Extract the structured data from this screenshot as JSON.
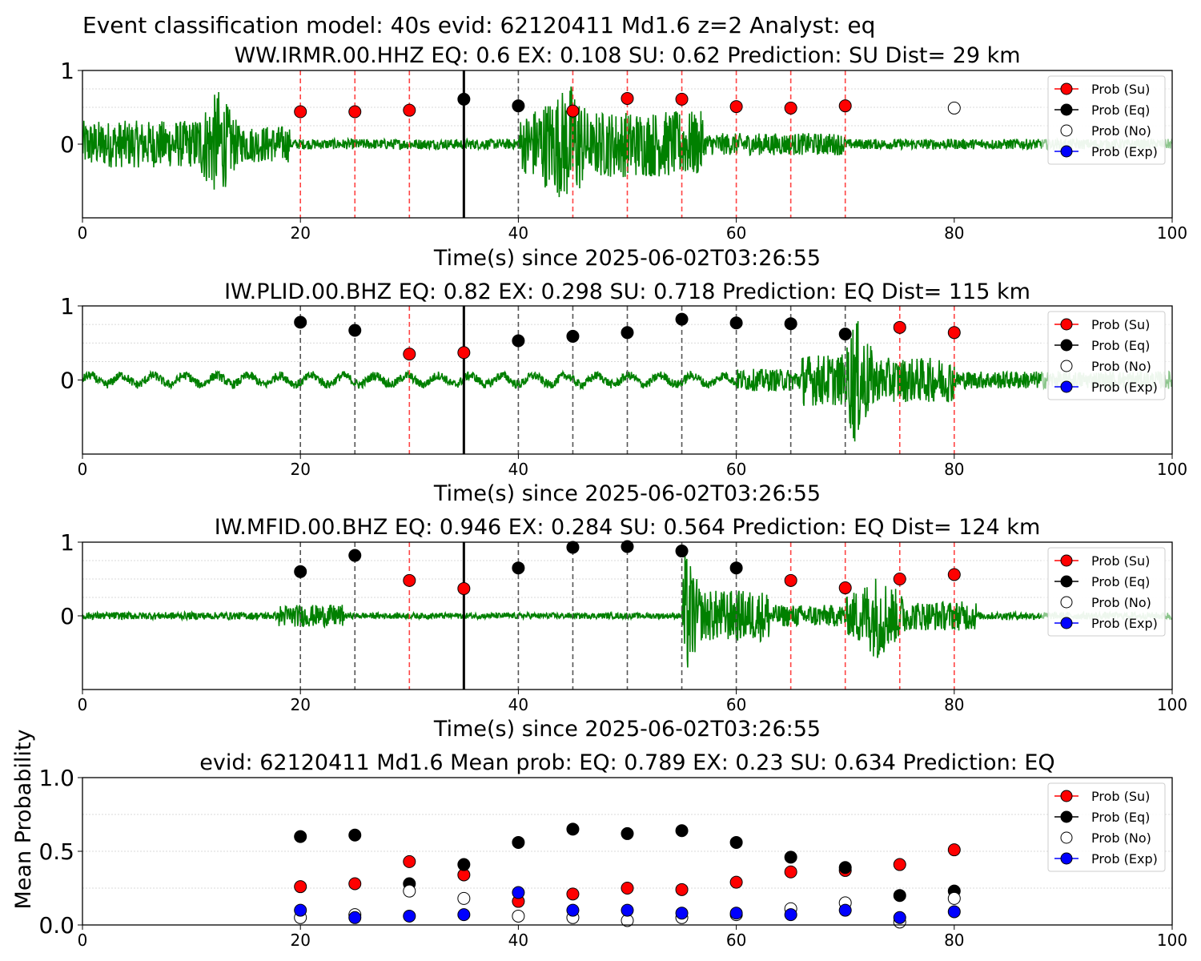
{
  "figure": {
    "suptitle": "Event classification model: 40s evid: 62120411 Md1.6 z=2 Analyst: eq",
    "colors": {
      "su": "#ff0000",
      "eq": "#000000",
      "no": "#ffffff",
      "exp": "#0000ff",
      "trace": "#008000",
      "trace_faint": "#c8e6c8"
    }
  },
  "chart_data": [
    {
      "type": "line",
      "title": "WW.IRMR.00.HHZ   EQ: 0.6  EX: 0.108  SU: 0.62   Prediction: SU    Dist= 29 km",
      "xlabel": "Time(s) since 2025-06-02T03:26:55",
      "xlim": [
        0,
        100
      ],
      "ylim": [
        -1,
        1
      ],
      "xticks": [
        "0",
        "20",
        "40",
        "60",
        "80",
        "100"
      ],
      "yticks": [
        "0",
        "1"
      ],
      "origin_marker_x": 35,
      "window_lines": [
        {
          "x": 20,
          "class": "su"
        },
        {
          "x": 25,
          "class": "su"
        },
        {
          "x": 30,
          "class": "su"
        },
        {
          "x": 40,
          "class": "eq"
        },
        {
          "x": 45,
          "class": "su"
        },
        {
          "x": 50,
          "class": "su"
        },
        {
          "x": 55,
          "class": "su"
        },
        {
          "x": 60,
          "class": "su"
        },
        {
          "x": 65,
          "class": "su"
        },
        {
          "x": 70,
          "class": "su"
        }
      ],
      "points": [
        {
          "x": 20,
          "y": 0.44,
          "class": "su"
        },
        {
          "x": 25,
          "y": 0.44,
          "class": "su"
        },
        {
          "x": 30,
          "y": 0.46,
          "class": "su"
        },
        {
          "x": 35,
          "y": 0.61,
          "class": "eq"
        },
        {
          "x": 40,
          "y": 0.52,
          "class": "eq"
        },
        {
          "x": 45,
          "y": 0.45,
          "class": "su"
        },
        {
          "x": 50,
          "y": 0.62,
          "class": "su"
        },
        {
          "x": 55,
          "y": 0.61,
          "class": "su"
        },
        {
          "x": 60,
          "y": 0.51,
          "class": "su"
        },
        {
          "x": 65,
          "y": 0.49,
          "class": "su"
        },
        {
          "x": 70,
          "y": 0.52,
          "class": "su"
        },
        {
          "x": 80,
          "y": 0.49,
          "class": "no"
        }
      ],
      "waveform": {
        "segments": [
          {
            "t0": 0,
            "t1": 10,
            "amp": 0.32
          },
          {
            "t0": 10,
            "t1": 14.5,
            "amp": 0.75,
            "peak": 12.5
          },
          {
            "t0": 14.5,
            "t1": 19,
            "amp": 0.25
          },
          {
            "t0": 19,
            "t1": 40,
            "amp": 0.07
          },
          {
            "t0": 40,
            "t1": 47,
            "amp": 0.85,
            "peak": 45
          },
          {
            "t0": 47,
            "t1": 57,
            "amp": 0.45
          },
          {
            "t0": 57,
            "t1": 70,
            "amp": 0.15
          },
          {
            "t0": 70,
            "t1": 100,
            "amp": 0.07
          }
        ]
      },
      "legend": [
        "Prob (Su)",
        "Prob (Eq)",
        "Prob (No)",
        "Prob (Exp)"
      ],
      "legend_loc": "upper right"
    },
    {
      "type": "line",
      "title": "IW.PLID.00.BHZ   EQ: 0.82  EX: 0.298  SU: 0.718   Prediction: EQ    Dist= 115 km",
      "xlabel": "Time(s) since 2025-06-02T03:26:55",
      "xlim": [
        0,
        100
      ],
      "ylim": [
        -1,
        1
      ],
      "xticks": [
        "0",
        "20",
        "40",
        "60",
        "80",
        "100"
      ],
      "yticks": [
        "0",
        "1"
      ],
      "origin_marker_x": 35,
      "window_lines": [
        {
          "x": 20,
          "class": "eq"
        },
        {
          "x": 25,
          "class": "eq"
        },
        {
          "x": 30,
          "class": "su"
        },
        {
          "x": 40,
          "class": "eq"
        },
        {
          "x": 45,
          "class": "eq"
        },
        {
          "x": 50,
          "class": "eq"
        },
        {
          "x": 55,
          "class": "eq"
        },
        {
          "x": 60,
          "class": "eq"
        },
        {
          "x": 65,
          "class": "eq"
        },
        {
          "x": 70,
          "class": "eq"
        },
        {
          "x": 75,
          "class": "su"
        },
        {
          "x": 80,
          "class": "su"
        }
      ],
      "points": [
        {
          "x": 20,
          "y": 0.78,
          "class": "eq"
        },
        {
          "x": 25,
          "y": 0.67,
          "class": "eq"
        },
        {
          "x": 30,
          "y": 0.35,
          "class": "su"
        },
        {
          "x": 35,
          "y": 0.37,
          "class": "su"
        },
        {
          "x": 40,
          "y": 0.53,
          "class": "eq"
        },
        {
          "x": 45,
          "y": 0.59,
          "class": "eq"
        },
        {
          "x": 50,
          "y": 0.64,
          "class": "eq"
        },
        {
          "x": 55,
          "y": 0.82,
          "class": "eq"
        },
        {
          "x": 60,
          "y": 0.77,
          "class": "eq"
        },
        {
          "x": 65,
          "y": 0.76,
          "class": "eq"
        },
        {
          "x": 70,
          "y": 0.62,
          "class": "eq"
        },
        {
          "x": 75,
          "y": 0.71,
          "class": "su"
        },
        {
          "x": 80,
          "y": 0.64,
          "class": "su"
        }
      ],
      "waveform": {
        "segments": [
          {
            "t0": 0,
            "t1": 60,
            "amp": 0.1,
            "swell": true
          },
          {
            "t0": 60,
            "t1": 66,
            "amp": 0.15
          },
          {
            "t0": 66,
            "t1": 70,
            "amp": 0.35
          },
          {
            "t0": 70,
            "t1": 73,
            "amp": 0.9,
            "peak": 70.8
          },
          {
            "t0": 73,
            "t1": 80,
            "amp": 0.3
          },
          {
            "t0": 80,
            "t1": 100,
            "amp": 0.12
          }
        ]
      },
      "legend": [
        "Prob (Su)",
        "Prob (Eq)",
        "Prob (No)",
        "Prob (Exp)"
      ],
      "legend_loc": "upper right"
    },
    {
      "type": "line",
      "title": "IW.MFID.00.BHZ   EQ: 0.946  EX: 0.284  SU: 0.564   Prediction: EQ    Dist= 124 km",
      "xlabel": "Time(s) since 2025-06-02T03:26:55",
      "xlim": [
        0,
        100
      ],
      "ylim": [
        -1,
        1
      ],
      "xticks": [
        "0",
        "20",
        "40",
        "60",
        "80",
        "100"
      ],
      "yticks": [
        "0",
        "1"
      ],
      "origin_marker_x": 35,
      "window_lines": [
        {
          "x": 20,
          "class": "eq"
        },
        {
          "x": 25,
          "class": "eq"
        },
        {
          "x": 30,
          "class": "su"
        },
        {
          "x": 40,
          "class": "eq"
        },
        {
          "x": 45,
          "class": "eq"
        },
        {
          "x": 50,
          "class": "eq"
        },
        {
          "x": 55,
          "class": "eq"
        },
        {
          "x": 60,
          "class": "eq"
        },
        {
          "x": 65,
          "class": "su"
        },
        {
          "x": 70,
          "class": "su"
        },
        {
          "x": 75,
          "class": "su"
        },
        {
          "x": 80,
          "class": "su"
        }
      ],
      "points": [
        {
          "x": 20,
          "y": 0.6,
          "class": "eq"
        },
        {
          "x": 25,
          "y": 0.82,
          "class": "eq"
        },
        {
          "x": 30,
          "y": 0.48,
          "class": "su"
        },
        {
          "x": 35,
          "y": 0.37,
          "class": "su"
        },
        {
          "x": 40,
          "y": 0.65,
          "class": "eq"
        },
        {
          "x": 45,
          "y": 0.93,
          "class": "eq"
        },
        {
          "x": 50,
          "y": 0.94,
          "class": "eq"
        },
        {
          "x": 55,
          "y": 0.88,
          "class": "eq"
        },
        {
          "x": 60,
          "y": 0.65,
          "class": "eq"
        },
        {
          "x": 65,
          "y": 0.48,
          "class": "su"
        },
        {
          "x": 70,
          "y": 0.38,
          "class": "su"
        },
        {
          "x": 75,
          "y": 0.5,
          "class": "su"
        },
        {
          "x": 80,
          "y": 0.56,
          "class": "su"
        }
      ],
      "waveform": {
        "segments": [
          {
            "t0": 0,
            "t1": 18,
            "amp": 0.05
          },
          {
            "t0": 18,
            "t1": 24,
            "amp": 0.15
          },
          {
            "t0": 24,
            "t1": 55,
            "amp": 0.04
          },
          {
            "t0": 55,
            "t1": 57,
            "amp": 0.9,
            "peak": 55.3
          },
          {
            "t0": 57,
            "t1": 63,
            "amp": 0.35
          },
          {
            "t0": 63,
            "t1": 70,
            "amp": 0.15
          },
          {
            "t0": 70,
            "t1": 76,
            "amp": 0.6,
            "peak": 73
          },
          {
            "t0": 76,
            "t1": 82,
            "amp": 0.2
          },
          {
            "t0": 82,
            "t1": 100,
            "amp": 0.05
          }
        ]
      },
      "legend": [
        "Prob (Su)",
        "Prob (Eq)",
        "Prob (No)",
        "Prob (Exp)"
      ],
      "legend_loc": "upper right"
    },
    {
      "type": "scatter",
      "title": "evid: 62120411  Md1.6   Mean prob:   EQ: 0.789  EX: 0.23  SU: 0.634   Prediction: EQ",
      "xlabel": "",
      "ylabel": "Mean Probability",
      "xlim": [
        0,
        100
      ],
      "ylim": [
        0,
        1
      ],
      "xticks": [
        "0",
        "20",
        "40",
        "60",
        "80",
        "100"
      ],
      "yticks": [
        "0.0",
        "0.5",
        "1.0"
      ],
      "x": [
        20,
        25,
        30,
        35,
        40,
        45,
        50,
        55,
        60,
        65,
        70,
        75,
        80
      ],
      "series": [
        {
          "name": "Prob (Su)",
          "class": "su",
          "values": [
            0.26,
            0.28,
            0.43,
            0.34,
            0.16,
            0.21,
            0.25,
            0.24,
            0.29,
            0.36,
            0.37,
            0.41,
            0.51
          ]
        },
        {
          "name": "Prob (Eq)",
          "class": "eq",
          "values": [
            0.6,
            0.61,
            0.28,
            0.41,
            0.56,
            0.65,
            0.62,
            0.64,
            0.56,
            0.46,
            0.39,
            0.2,
            0.23
          ]
        },
        {
          "name": "Prob (No)",
          "class": "no",
          "values": [
            0.05,
            0.07,
            0.23,
            0.18,
            0.06,
            0.05,
            0.03,
            0.05,
            0.07,
            0.11,
            0.15,
            0.02,
            0.18
          ]
        },
        {
          "name": "Prob (Exp)",
          "class": "exp",
          "values": [
            0.1,
            0.05,
            0.06,
            0.07,
            0.22,
            0.1,
            0.1,
            0.08,
            0.08,
            0.07,
            0.1,
            0.05,
            0.09
          ]
        }
      ],
      "legend": [
        "Prob (Su)",
        "Prob (Eq)",
        "Prob (No)",
        "Prob (Exp)"
      ],
      "legend_loc": "upper right"
    }
  ]
}
